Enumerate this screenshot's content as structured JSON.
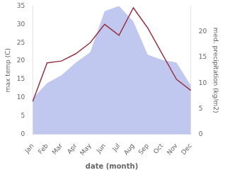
{
  "chart_data": {
    "type": "line",
    "xlabel": "date (month)",
    "ylabel": "max temp (C)",
    "y2label": "med. precipitation (kg/m2)",
    "categories": [
      "Jan",
      "Feb",
      "Mar",
      "Apr",
      "May",
      "Jun",
      "Jul",
      "Aug",
      "Sep",
      "Oct",
      "Nov",
      "Dec"
    ],
    "series": [
      {
        "type": "area",
        "axis": "y2",
        "color": "#c0c8f0",
        "values": [
          7.0,
          10.0,
          11.5,
          14.0,
          16.0,
          24.0,
          25.0,
          22.0,
          15.5,
          14.5,
          14.0,
          9.5
        ]
      },
      {
        "type": "line",
        "color": "#993344",
        "line_style": "solid",
        "values": [
          9.0,
          19.5,
          20.0,
          22.0,
          25.0,
          30.0,
          27.0,
          34.5,
          29.0,
          22.0,
          15.0,
          12.0
        ]
      }
    ],
    "ylim": [
      0,
      35
    ],
    "yticks": [
      0,
      5,
      10,
      15,
      20,
      25,
      30,
      35
    ],
    "y2lim": [
      0,
      25
    ],
    "y2ticks": [
      0,
      5,
      10,
      15,
      20
    ],
    "grid": false
  }
}
